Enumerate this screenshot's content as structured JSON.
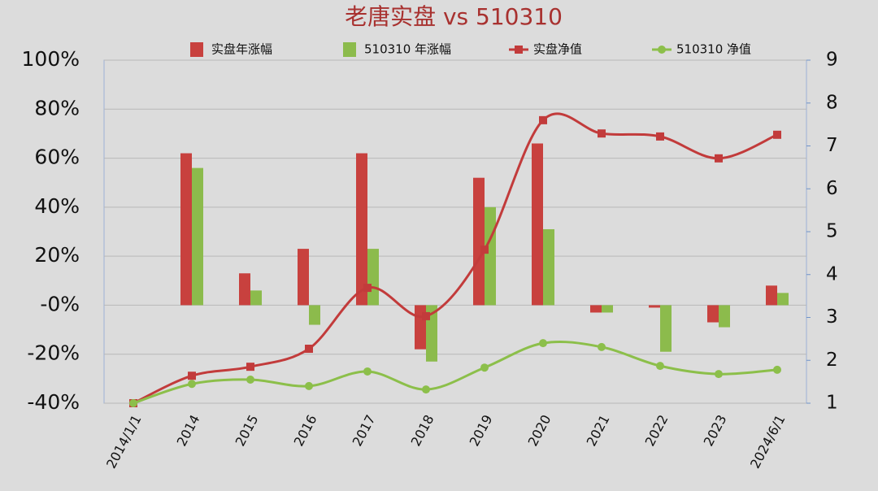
{
  "chart_data": {
    "type": "combo",
    "title": "老唐实盘 vs 510310",
    "categories": [
      "2014/1/1",
      "2014",
      "2015",
      "2016",
      "2017",
      "2018",
      "2019",
      "2020",
      "2021",
      "2022",
      "2023",
      "2024/6/1"
    ],
    "series": [
      {
        "name": "实盘年涨幅",
        "type": "bar",
        "color": "#c8413e",
        "values": [
          null,
          62,
          13,
          23,
          62,
          -18,
          52,
          66,
          -3,
          -1,
          -7,
          8
        ]
      },
      {
        "name": "510310 年涨幅",
        "type": "bar",
        "color": "#8cbb4c",
        "values": [
          null,
          56,
          6,
          -8,
          23,
          -23,
          40,
          31,
          -3,
          -19,
          -9,
          5
        ]
      },
      {
        "name": "实盘净值",
        "type": "line",
        "axis": "y2",
        "color": "#c23b3b",
        "values": [
          1.0,
          1.64,
          1.85,
          2.27,
          3.69,
          3.03,
          4.58,
          7.6,
          7.29,
          7.22,
          6.71,
          7.26
        ]
      },
      {
        "name": "510310 净值",
        "type": "line",
        "axis": "y2",
        "color": "#8cbf4a",
        "values": [
          1.0,
          1.45,
          1.55,
          1.4,
          1.74,
          1.32,
          1.83,
          2.4,
          2.31,
          1.87,
          1.68,
          1.78
        ]
      }
    ],
    "ylim": [
      -40,
      100
    ],
    "yticks": [
      {
        "value": -40,
        "label": "-40%"
      },
      {
        "value": -20,
        "label": "-20%"
      },
      {
        "value": 0,
        "label": "-0%"
      },
      {
        "value": 20,
        "label": "20%"
      },
      {
        "value": 40,
        "label": "40%"
      },
      {
        "value": 60,
        "label": "60%"
      },
      {
        "value": 80,
        "label": "80%"
      },
      {
        "value": 100,
        "label": "100%"
      }
    ],
    "y2lim": [
      1,
      9
    ],
    "y2ticks": [
      1,
      2,
      3,
      4,
      5,
      6,
      7,
      8,
      9
    ],
    "grid": true
  }
}
